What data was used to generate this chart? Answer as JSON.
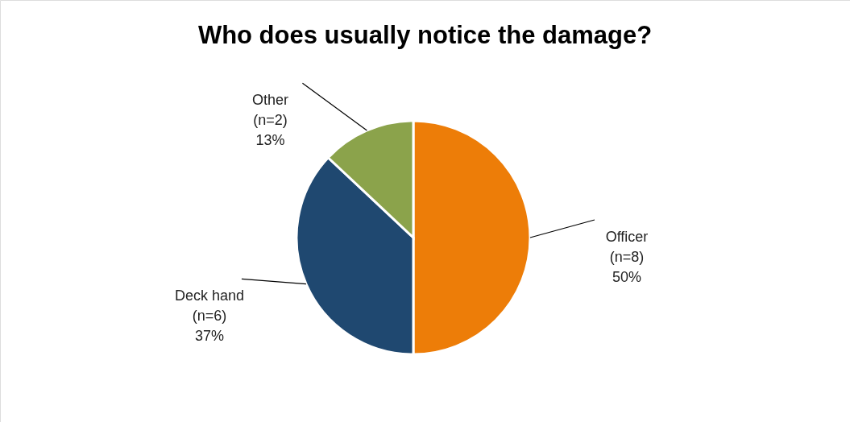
{
  "chart_data": {
    "type": "pie",
    "title": "Who does usually notice the damage?",
    "categories": [
      "Officer\n(n=8)",
      "Deck hand\n(n=6)",
      "Other\n(n=2)"
    ],
    "values": [
      50,
      37,
      13
    ],
    "value_labels": [
      "50%",
      "37%",
      "13%"
    ],
    "colors": [
      "#ed7d08",
      "#1f4870",
      "#8ba34b"
    ]
  }
}
